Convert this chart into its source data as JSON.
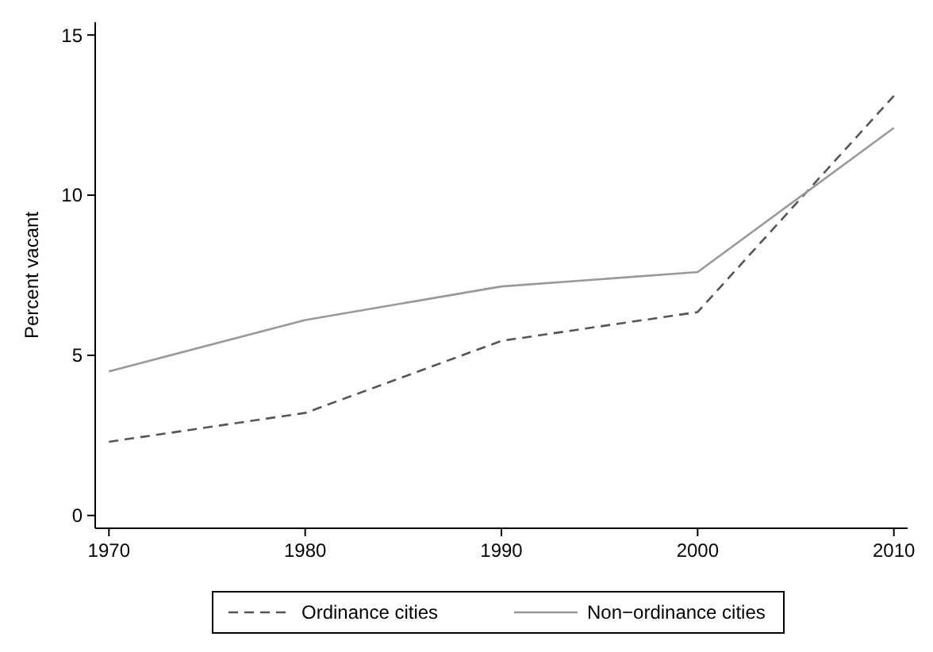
{
  "chart_data": {
    "type": "line",
    "ylabel": "Percent vacant",
    "x": [
      1970,
      1980,
      1990,
      2000,
      2010
    ],
    "series": [
      {
        "name": "Ordinance cities",
        "color": "#555555",
        "line_style": "dashed",
        "values": [
          2.3,
          3.2,
          5.45,
          6.35,
          13.1
        ]
      },
      {
        "name": "Non−ordinance cities",
        "color": "#999999",
        "line_style": "solid",
        "values": [
          4.5,
          6.1,
          7.15,
          7.6,
          12.1
        ]
      }
    ],
    "xlim": [
      1969.3,
      2010.7
    ],
    "xticks": [
      1970,
      1980,
      1990,
      2000,
      2010
    ],
    "ylim": [
      -0.4,
      15.4
    ],
    "yticks": [
      0,
      5,
      10,
      15
    ],
    "grid": false,
    "legend": "bottom",
    "marker": "none"
  }
}
